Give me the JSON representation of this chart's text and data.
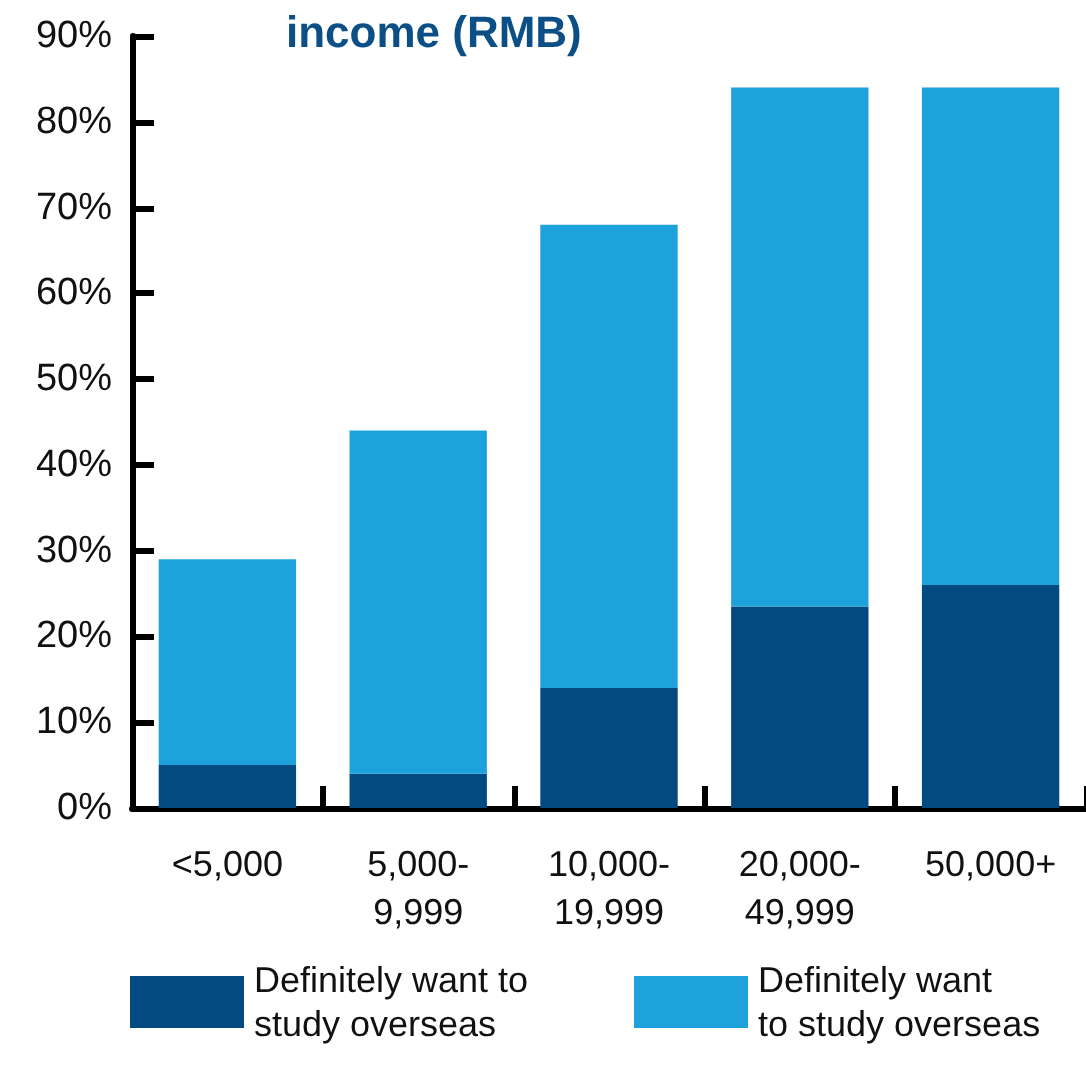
{
  "chart_data": {
    "type": "bar",
    "title": "income (RMB)",
    "stacked": true,
    "categories": [
      "<5,000",
      "5,000-9,999",
      "10,000-19,999",
      "20,000-49,999",
      "50,000+"
    ],
    "series": [
      {
        "name": "Definitely want to study overseas",
        "color": "#034a80",
        "values": [
          5,
          4,
          14,
          23.5,
          26
        ]
      },
      {
        "name": "Definitely want to study overseas",
        "color": "#1ea2dc",
        "values": [
          24,
          40,
          54,
          60.5,
          58
        ]
      }
    ],
    "ylim": [
      0,
      90
    ],
    "yticks": [
      {
        "value": 0,
        "label": "0%"
      },
      {
        "value": 10,
        "label": "10%"
      },
      {
        "value": 20,
        "label": "20%"
      },
      {
        "value": 30,
        "label": "30%"
      },
      {
        "value": 40,
        "label": "40%"
      },
      {
        "value": 50,
        "label": "50%"
      },
      {
        "value": 60,
        "label": "60%"
      },
      {
        "value": 70,
        "label": "70%"
      },
      {
        "value": 80,
        "label": "80%"
      },
      {
        "value": 90,
        "label": "90%"
      }
    ],
    "legend": "bottom"
  }
}
